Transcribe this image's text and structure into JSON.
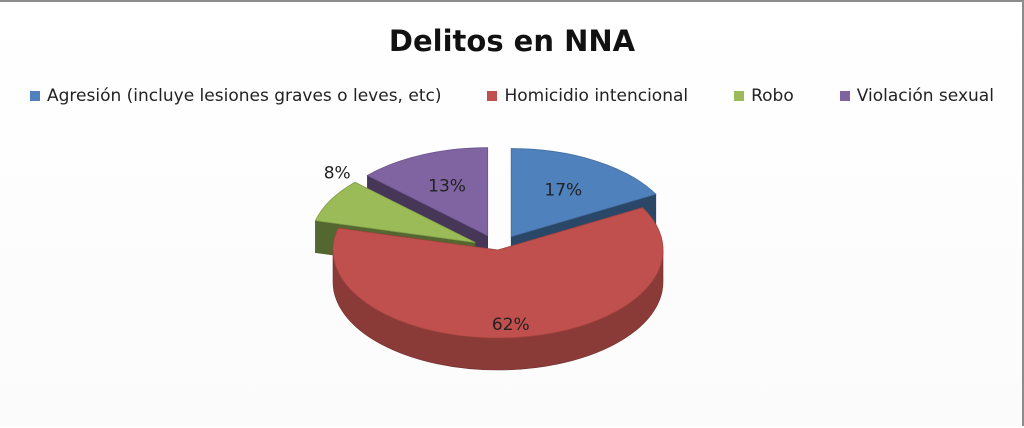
{
  "chart_data": {
    "type": "pie",
    "title": "Delitos en NNA",
    "legend_position": "top",
    "categories": [
      "Agresión (incluye lesiones graves o leves, etc)",
      "Homicidio intencional",
      "Robo",
      "Violación sexual"
    ],
    "values": [
      17,
      62,
      8,
      13
    ],
    "data_labels": [
      "17%",
      "62%",
      "8%",
      "13%"
    ],
    "colors": [
      "#4f81bd",
      "#c0504d",
      "#9bbb59",
      "#8064a2"
    ],
    "exploded": true,
    "three_d": true
  }
}
